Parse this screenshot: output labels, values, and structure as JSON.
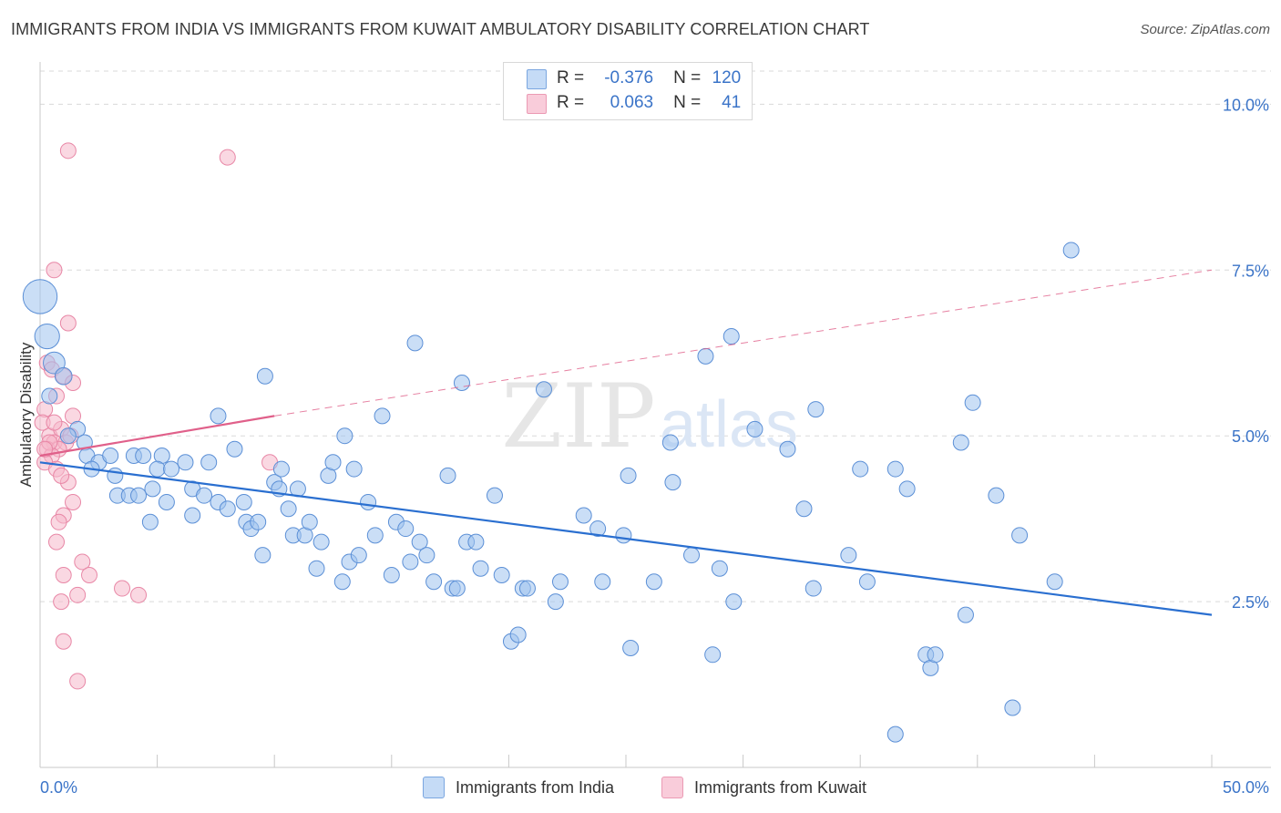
{
  "title": "IMMIGRANTS FROM INDIA VS IMMIGRANTS FROM KUWAIT AMBULATORY DISABILITY CORRELATION CHART",
  "source": "Source: ZipAtlas.com",
  "colors": {
    "india_fill": "#9fc3ee",
    "india_stroke": "#5b8fd6",
    "india_line": "#2a6fd0",
    "kuwait_fill": "#f5b8cb",
    "kuwait_stroke": "#e887a6",
    "kuwait_line": "#e0608a",
    "axis_text": "#3b74c8",
    "grid": "#d9d9d9"
  },
  "legend": {
    "r_label": "R =",
    "n_label": "N =",
    "india": {
      "r": "-0.376",
      "n": "120"
    },
    "kuwait": {
      "r": "0.063",
      "n": "41"
    }
  },
  "bottom_legend": {
    "india": "Immigrants from India",
    "kuwait": "Immigrants from Kuwait"
  },
  "watermark": {
    "zip": "ZIP",
    "atlas": "atlas"
  },
  "chart_data": {
    "type": "scatter",
    "title": "IMMIGRANTS FROM INDIA VS IMMIGRANTS FROM KUWAIT AMBULATORY DISABILITY CORRELATION CHART",
    "xlabel": "",
    "ylabel": "Ambulatory Disability",
    "xlim": [
      0,
      50
    ],
    "ylim": [
      0,
      10.5
    ],
    "x_tick_labels": [
      "0.0%",
      "50.0%"
    ],
    "y_ticks": [
      2.5,
      5.0,
      7.5,
      10.0
    ],
    "y_tick_labels": [
      "2.5%",
      "5.0%",
      "7.5%",
      "10.0%"
    ],
    "series": [
      {
        "name": "Immigrants from India",
        "trend": {
          "x": [
            0,
            50
          ],
          "y": [
            4.6,
            2.3
          ],
          "style": "solid"
        },
        "points": [
          [
            0.0,
            7.1,
            2.2
          ],
          [
            0.3,
            6.5,
            1.6
          ],
          [
            0.6,
            6.1,
            1.4
          ],
          [
            1.0,
            5.9,
            1.1
          ],
          [
            1.6,
            5.1,
            1
          ],
          [
            1.2,
            5.0,
            1
          ],
          [
            1.9,
            4.9,
            1
          ],
          [
            2.0,
            4.7,
            1
          ],
          [
            2.5,
            4.6,
            1
          ],
          [
            3.0,
            4.7,
            1
          ],
          [
            2.2,
            4.5,
            1
          ],
          [
            3.2,
            4.4,
            1
          ],
          [
            4.0,
            4.7,
            1
          ],
          [
            4.4,
            4.7,
            1
          ],
          [
            5.2,
            4.7,
            1
          ],
          [
            5.0,
            4.5,
            1
          ],
          [
            5.6,
            4.5,
            1
          ],
          [
            6.2,
            4.6,
            1
          ],
          [
            7.2,
            4.6,
            1
          ],
          [
            7.6,
            5.3,
            1
          ],
          [
            3.3,
            4.1,
            1
          ],
          [
            3.8,
            4.1,
            1
          ],
          [
            4.2,
            4.1,
            1
          ],
          [
            4.8,
            4.2,
            1
          ],
          [
            5.4,
            4.0,
            1
          ],
          [
            6.5,
            4.2,
            1
          ],
          [
            7.0,
            4.1,
            1
          ],
          [
            7.6,
            4.0,
            1
          ],
          [
            8.0,
            3.9,
            1
          ],
          [
            8.7,
            4.0,
            1
          ],
          [
            6.5,
            3.8,
            1
          ],
          [
            4.7,
            3.7,
            1
          ],
          [
            8.8,
            3.7,
            1
          ],
          [
            9.0,
            3.6,
            1
          ],
          [
            9.3,
            3.7,
            1
          ],
          [
            9.5,
            3.2,
            1
          ],
          [
            9.6,
            5.9,
            1
          ],
          [
            10.0,
            4.3,
            1
          ],
          [
            10.3,
            4.5,
            1
          ],
          [
            10.6,
            3.9,
            1
          ],
          [
            11.0,
            4.2,
            1
          ],
          [
            10.2,
            4.2,
            1
          ],
          [
            10.8,
            3.5,
            1
          ],
          [
            11.3,
            3.5,
            1
          ],
          [
            11.5,
            3.7,
            1
          ],
          [
            11.8,
            3.0,
            1
          ],
          [
            12.0,
            3.4,
            1
          ],
          [
            12.3,
            4.4,
            1
          ],
          [
            12.5,
            4.6,
            1
          ],
          [
            12.9,
            2.8,
            1
          ],
          [
            13.2,
            3.1,
            1
          ],
          [
            13.6,
            3.2,
            1
          ],
          [
            13.4,
            4.5,
            1
          ],
          [
            14.0,
            4.0,
            1
          ],
          [
            14.3,
            3.5,
            1
          ],
          [
            14.6,
            5.3,
            1
          ],
          [
            15.0,
            2.9,
            1
          ],
          [
            15.2,
            3.7,
            1
          ],
          [
            15.6,
            3.6,
            1
          ],
          [
            15.8,
            3.1,
            1
          ],
          [
            16.2,
            3.4,
            1
          ],
          [
            16.5,
            3.2,
            1
          ],
          [
            16.0,
            6.4,
            1
          ],
          [
            16.8,
            2.8,
            1
          ],
          [
            17.4,
            4.4,
            1
          ],
          [
            17.6,
            2.7,
            1
          ],
          [
            17.8,
            2.7,
            1
          ],
          [
            18.0,
            5.8,
            1
          ],
          [
            18.2,
            3.4,
            1
          ],
          [
            18.6,
            3.4,
            1
          ],
          [
            18.8,
            3.0,
            1
          ],
          [
            19.4,
            4.1,
            1
          ],
          [
            19.7,
            2.9,
            1
          ],
          [
            20.1,
            1.9,
            1
          ],
          [
            20.4,
            2.0,
            1
          ],
          [
            20.6,
            2.7,
            1
          ],
          [
            20.8,
            2.7,
            1
          ],
          [
            21.5,
            5.7,
            1
          ],
          [
            22.0,
            2.5,
            1
          ],
          [
            22.2,
            2.8,
            1
          ],
          [
            23.2,
            3.8,
            1
          ],
          [
            23.8,
            3.6,
            1
          ],
          [
            24.0,
            2.8,
            1
          ],
          [
            24.9,
            3.5,
            1
          ],
          [
            25.1,
            4.4,
            1
          ],
          [
            25.2,
            1.8,
            1
          ],
          [
            26.2,
            2.8,
            1
          ],
          [
            26.9,
            4.9,
            1
          ],
          [
            27.8,
            3.2,
            1
          ],
          [
            28.4,
            6.2,
            1
          ],
          [
            28.7,
            1.7,
            1
          ],
          [
            29.0,
            3.0,
            1
          ],
          [
            29.5,
            6.5,
            1
          ],
          [
            29.6,
            2.5,
            1
          ],
          [
            31.9,
            4.8,
            1
          ],
          [
            32.6,
            3.9,
            1
          ],
          [
            33.1,
            5.4,
            1
          ],
          [
            33.0,
            2.7,
            1
          ],
          [
            34.5,
            3.2,
            1
          ],
          [
            35.0,
            4.5,
            1
          ],
          [
            35.3,
            2.8,
            1
          ],
          [
            36.5,
            4.5,
            1
          ],
          [
            36.5,
            0.5,
            1
          ],
          [
            37.8,
            1.7,
            1
          ],
          [
            38.0,
            1.5,
            1
          ],
          [
            38.2,
            1.7,
            1
          ],
          [
            39.5,
            2.3,
            1
          ],
          [
            39.8,
            5.5,
            1
          ],
          [
            40.8,
            4.1,
            1
          ],
          [
            41.5,
            0.9,
            1
          ],
          [
            41.8,
            3.5,
            1
          ],
          [
            39.3,
            4.9,
            1
          ],
          [
            43.3,
            2.8,
            1
          ],
          [
            44.0,
            7.8,
            1
          ],
          [
            37.0,
            4.2,
            1
          ],
          [
            30.5,
            5.1,
            1
          ],
          [
            27.0,
            4.3,
            1
          ],
          [
            13.0,
            5.0,
            1
          ],
          [
            8.3,
            4.8,
            1
          ],
          [
            0.4,
            5.6,
            1
          ]
        ]
      },
      {
        "name": "Immigrants from Kuwait",
        "trend": {
          "x": [
            0,
            10
          ],
          "y": [
            4.7,
            5.3
          ],
          "style": "solid",
          "extended": {
            "x": [
              10,
              50
            ],
            "y": [
              5.3,
              7.5
            ],
            "style": "dashed"
          }
        },
        "points": [
          [
            1.2,
            9.3,
            1
          ],
          [
            0.6,
            7.5,
            1
          ],
          [
            1.2,
            6.7,
            1
          ],
          [
            0.3,
            6.1,
            1
          ],
          [
            0.5,
            6.0,
            1
          ],
          [
            1.0,
            5.9,
            1
          ],
          [
            1.4,
            5.8,
            1
          ],
          [
            0.7,
            5.6,
            1
          ],
          [
            0.2,
            5.4,
            1
          ],
          [
            1.4,
            5.3,
            1
          ],
          [
            0.4,
            5.0,
            1
          ],
          [
            0.9,
            5.1,
            1
          ],
          [
            0.6,
            4.9,
            1
          ],
          [
            1.1,
            4.9,
            1
          ],
          [
            0.3,
            4.8,
            1
          ],
          [
            0.8,
            4.8,
            1
          ],
          [
            0.5,
            4.7,
            1
          ],
          [
            0.2,
            4.6,
            1
          ],
          [
            0.7,
            4.5,
            1
          ],
          [
            1.2,
            4.3,
            1
          ],
          [
            1.4,
            4.0,
            1
          ],
          [
            1.0,
            3.8,
            1
          ],
          [
            0.8,
            3.7,
            1
          ],
          [
            0.7,
            3.4,
            1
          ],
          [
            1.8,
            3.1,
            1
          ],
          [
            1.0,
            2.9,
            1
          ],
          [
            2.1,
            2.9,
            1
          ],
          [
            1.6,
            2.6,
            1
          ],
          [
            3.5,
            2.7,
            1
          ],
          [
            4.2,
            2.6,
            1
          ],
          [
            0.9,
            2.5,
            1
          ],
          [
            1.0,
            1.9,
            1
          ],
          [
            1.6,
            1.3,
            1
          ],
          [
            8.0,
            9.2,
            1
          ],
          [
            9.8,
            4.6,
            1
          ],
          [
            0.1,
            5.2,
            1
          ],
          [
            0.4,
            4.9,
            1
          ],
          [
            1.3,
            5.0,
            1
          ],
          [
            0.6,
            5.2,
            1
          ],
          [
            0.2,
            4.8,
            1
          ],
          [
            0.9,
            4.4,
            1
          ]
        ]
      }
    ]
  }
}
